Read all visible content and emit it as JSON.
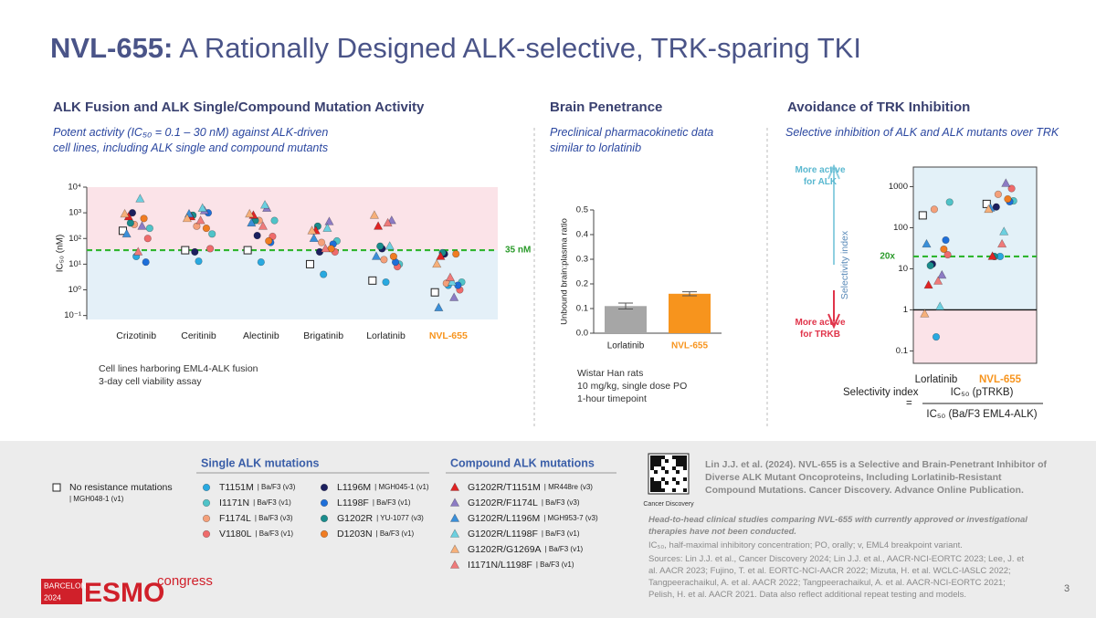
{
  "header": {
    "title_bold": "NVL-655:",
    "title": " A Rationally Designed ALK-selective, TRK-sparing TKI"
  },
  "panels": [
    {
      "heading": "ALK Fusion and ALK Single/Compound Mutation Activity",
      "subtitle": "Potent activity (IC₅₀ = 0.1 – 30 nM) against ALK-driven cell lines, including ALK single and compound mutants",
      "notes": [
        "Cell lines harboring EML4-ALK fusion",
        "3-day cell viability assay"
      ]
    },
    {
      "heading": "Brain Penetrance",
      "subtitle": "Preclinical pharmacokinetic data similar to lorlatinib",
      "notes": [
        "Wistar Han rats",
        "10 mg/kg, single dose PO",
        "1-hour timepoint"
      ]
    },
    {
      "heading": "Avoidance of TRK Inhibition",
      "subtitle": "Selective inhibition of ALK and ALK mutants over TRK",
      "arrow_up": "More active for ALK",
      "arrow_down": "More active for TRKB",
      "formula": {
        "name": "Selectivity index",
        "equals": "=",
        "numerator": "IC₅₀ (pTRKB)",
        "denominator": "IC₅₀ (Ba/F3 EML4-ALK)"
      }
    }
  ],
  "chart_data": [
    {
      "type": "strip",
      "y_label": "IC₅₀ (nM)",
      "log_scale": true,
      "categories": [
        "Crizotinib",
        "Ceritinib",
        "Alectinib",
        "Brigatinib",
        "Lorlatinib",
        "NVL-655"
      ],
      "category_colors": [
        "#222222",
        "#222222",
        "#222222",
        "#222222",
        "#222222",
        "#f7941d"
      ],
      "ylim": [
        0.07,
        10000
      ],
      "yticks": [
        {
          "value": 0.1,
          "label": "10⁻¹"
        },
        {
          "value": 1,
          "label": "10⁰"
        },
        {
          "value": 10,
          "label": "10¹"
        },
        {
          "value": 100,
          "label": "10²"
        },
        {
          "value": 1000,
          "label": "10³"
        },
        {
          "value": 10000,
          "label": "10⁴"
        }
      ],
      "threshold": {
        "value": 35,
        "label": "35 nM"
      },
      "series": [
        {
          "name": "No resistance mutations",
          "source": "| MGH048-1 (v1)",
          "marker": "square",
          "color": "#ffffff",
          "values": [
            200,
            35,
            35,
            10,
            2.3,
            0.8
          ]
        },
        {
          "name": "T1151M",
          "source": "| Ba/F3 (v3)",
          "marker": "circle",
          "color": "#29a9e0",
          "values": [
            20,
            13,
            12,
            4,
            2,
            1.5
          ]
        },
        {
          "name": "I1171N",
          "source": "| Ba/F3 (v1)",
          "marker": "circle",
          "color": "#4fc3c8",
          "values": [
            250,
            150,
            500,
            80,
            10,
            2
          ]
        },
        {
          "name": "F1174L",
          "source": "| Ba/F3 (v3)",
          "marker": "circle",
          "color": "#f4a07a",
          "values": [
            350,
            300,
            500,
            70,
            15,
            1.8
          ]
        },
        {
          "name": "V1180L",
          "source": "| Ba/F3 (v1)",
          "marker": "circle",
          "color": "#ef6b6b",
          "values": [
            100,
            40,
            120,
            30,
            8,
            1
          ]
        },
        {
          "name": "L1196M",
          "source": "| MGH045-1 (v1)",
          "marker": "circle",
          "color": "#1b1f5e",
          "values": [
            1000,
            30,
            130,
            30,
            40,
            25
          ]
        },
        {
          "name": "L1198F",
          "source": "| Ba/F3 (v1)",
          "marker": "circle",
          "color": "#1e6fd9",
          "values": [
            12,
            1000,
            70,
            60,
            12,
            1.5
          ]
        },
        {
          "name": "G1202R",
          "source": "| YU-1077 (v3)",
          "marker": "circle",
          "color": "#1a8c8c",
          "values": [
            400,
            800,
            500,
            300,
            50,
            28
          ]
        },
        {
          "name": "D1203N",
          "source": "| Ba/F3 (v1)",
          "marker": "circle",
          "color": "#f07c22",
          "values": [
            600,
            250,
            80,
            40,
            20,
            25
          ]
        },
        {
          "name": "G1202R/T1151M",
          "source": "| MR448re (v3)",
          "marker": "triangle",
          "color": "#e02424",
          "values": [
            700,
            700,
            800,
            200,
            300,
            20
          ]
        },
        {
          "name": "G1202R/F1174L",
          "source": "| Ba/F3 (v3)",
          "marker": "triangle",
          "color": "#8c7bc4",
          "values": [
            300,
            1200,
            1500,
            450,
            500,
            0.5
          ]
        },
        {
          "name": "G1202R/L1196M",
          "source": "| MGH953-7 (v3)",
          "marker": "triangle",
          "color": "#3a8fd9",
          "values": [
            150,
            900,
            400,
            100,
            20,
            0.2
          ]
        },
        {
          "name": "G1202R/L1198F",
          "source": "| Ba/F3 (v1)",
          "marker": "triangle",
          "color": "#6cd0e0",
          "values": [
            3500,
            1500,
            2000,
            250,
            50,
            2
          ]
        },
        {
          "name": "G1202R/G1269A",
          "source": "| Ba/F3 (v1)",
          "marker": "triangle",
          "color": "#f6b07a",
          "values": [
            900,
            600,
            900,
            200,
            800,
            10
          ]
        },
        {
          "name": "I1171N/L1198F",
          "source": "| Ba/F3 (v1)",
          "marker": "triangle",
          "color": "#ef7a7a",
          "values": [
            30,
            500,
            300,
            40,
            400,
            3
          ]
        }
      ]
    },
    {
      "type": "bar",
      "y_label": "Unbound brain:plasma ratio",
      "categories": [
        "Lorlatinib",
        "NVL-655"
      ],
      "category_colors": [
        "#222222",
        "#f7941d"
      ],
      "values": [
        0.11,
        0.16
      ],
      "errors": [
        0.012,
        0.008
      ],
      "colors": [
        "#a6a6a6",
        "#f7941d"
      ],
      "ylim": [
        0,
        0.5
      ],
      "yticks": [
        {
          "value": 0,
          "label": "0.0"
        },
        0.1,
        0.2,
        0.3,
        0.4,
        0.5
      ]
    },
    {
      "type": "strip",
      "y_label": "Selectivity index",
      "log_scale": true,
      "categories": [
        "Lorlatinib",
        "NVL-655"
      ],
      "category_colors": [
        "#222222",
        "#f7941d"
      ],
      "ylim": [
        0.05,
        3000
      ],
      "yticks": [
        0.1,
        1,
        10,
        100,
        1000
      ],
      "threshold": {
        "value": 20,
        "label": "20x"
      },
      "baseline": 1,
      "series": [
        {
          "marker": "square",
          "color": "#ffffff",
          "values": [
            200,
            380
          ]
        },
        {
          "marker": "circle",
          "color": "#29a9e0",
          "values": [
            0.22,
            20
          ]
        },
        {
          "marker": "circle",
          "color": "#4fc3c8",
          "values": [
            420,
            450
          ]
        },
        {
          "marker": "circle",
          "color": "#f4a07a",
          "values": [
            280,
            650
          ]
        },
        {
          "marker": "circle",
          "color": "#ef6b6b",
          "values": [
            22,
            900
          ]
        },
        {
          "marker": "circle",
          "color": "#1b1f5e",
          "values": [
            13,
            320
          ]
        },
        {
          "marker": "circle",
          "color": "#1e6fd9",
          "values": [
            50,
            430
          ]
        },
        {
          "marker": "circle",
          "color": "#1a8c8c",
          "values": [
            12,
            20
          ]
        },
        {
          "marker": "circle",
          "color": "#f07c22",
          "values": [
            30,
            500
          ]
        },
        {
          "marker": "triangle",
          "color": "#e02424",
          "values": [
            4,
            20
          ]
        },
        {
          "marker": "triangle",
          "color": "#8c7bc4",
          "values": [
            7,
            1200
          ]
        },
        {
          "marker": "triangle",
          "color": "#3a8fd9",
          "values": [
            40,
            300
          ]
        },
        {
          "marker": "triangle",
          "color": "#6cd0e0",
          "values": [
            1.2,
            80
          ]
        },
        {
          "marker": "triangle",
          "color": "#f6b07a",
          "values": [
            0.8,
            280
          ]
        },
        {
          "marker": "triangle",
          "color": "#ef7a7a",
          "values": [
            5,
            40
          ]
        }
      ]
    }
  ],
  "legend": {
    "single_heading": "Single ALK mutations",
    "compound_heading": "Compound ALK mutations"
  },
  "reference": {
    "citation": "Lin J.J. et al. (2024). NVL-655 is a Selective and Brain-Penetrant Inhibitor of Diverse ALK Mutant Oncoproteins, Including Lorlatinib-Resistant Compound Mutations. Cancer Discovery. Advance Online Publication.",
    "qr_caption": "Cancer Discovery"
  },
  "footnotes": [
    "Head-to-head clinical studies comparing NVL-655 with currently approved or investigational therapies have not been conducted.",
    "IC₅₀, half-maximal inhibitory concentration; PO, orally; v, EML4 breakpoint variant.",
    "Sources: Lin J.J. et al., Cancer Discovery 2024; Lin J.J. et al., AACR-NCI-EORTC 2023; Lee, J. et al. AACR 2023; Fujino, T. et al. EORTC-NCI-AACR 2022; Mizuta, H. et al. WCLC-IASLC 2022; Tangpeerachaikul, A. et al. AACR 2022; Tangpeerachaikul, A. et al. AACR-NCI-EORTC 2021; Pelish, H. et al. AACR 2021. Data also reflect additional repeat testing and models."
  ],
  "logo": {
    "city": "BARCELONA",
    "year": "2024",
    "name": "ESMO",
    "suffix": "congress"
  },
  "page_number": "3"
}
